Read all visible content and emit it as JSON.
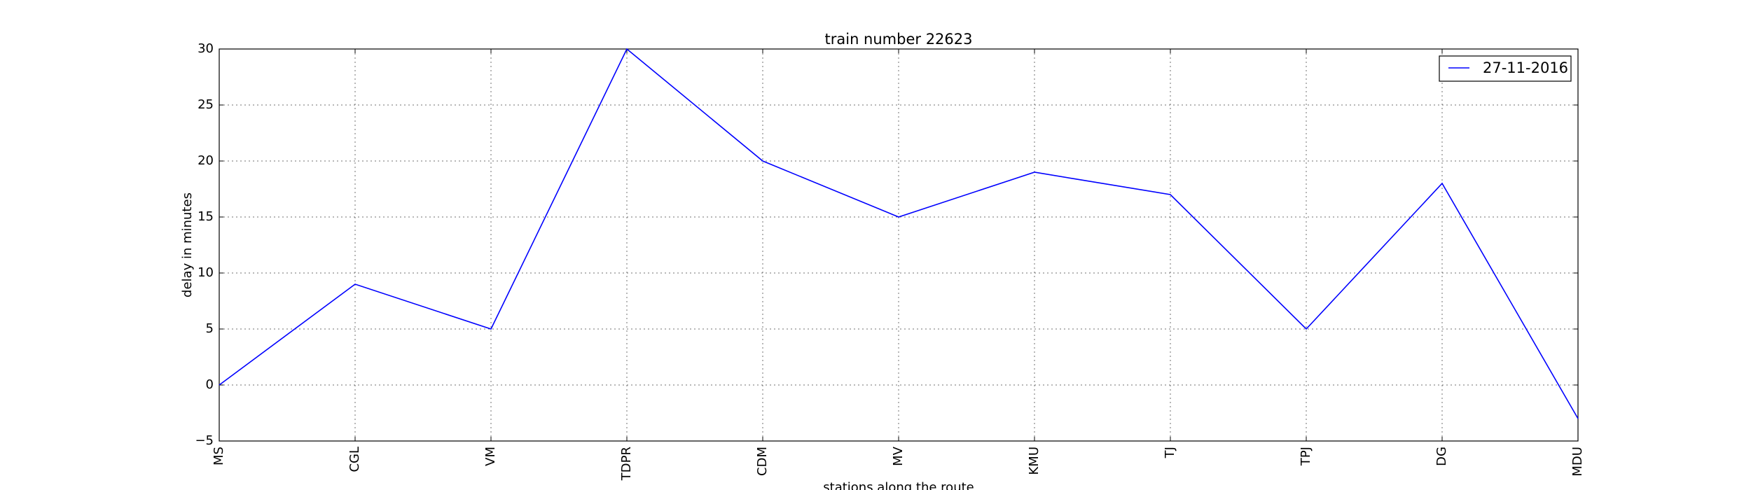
{
  "chart_data": {
    "type": "line",
    "title": "train number 22623",
    "xlabel": "stations along the route",
    "ylabel": "delay in minutes",
    "categories": [
      "MS",
      "CGL",
      "VM",
      "TDPR",
      "CDM",
      "MV",
      "KMU",
      "TJ",
      "TPJ",
      "DG",
      "MDU"
    ],
    "series": [
      {
        "name": "27-11-2016",
        "values": [
          0,
          9,
          5,
          30,
          20,
          15,
          19,
          17,
          5,
          18,
          -3
        ],
        "color": "#0000ff"
      }
    ],
    "ylim": [
      -5,
      30
    ],
    "yticks": [
      -5,
      0,
      5,
      10,
      15,
      20,
      25,
      30
    ],
    "ytick_labels": [
      "−5",
      "0",
      "5",
      "10",
      "15",
      "20",
      "25",
      "30"
    ],
    "grid": true,
    "legend_position": "upper right"
  }
}
